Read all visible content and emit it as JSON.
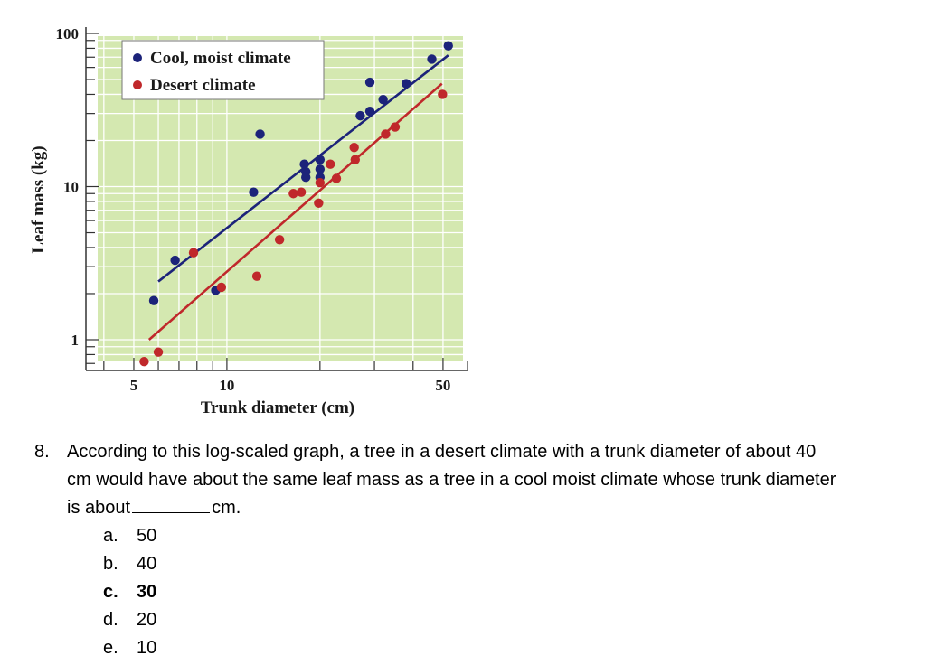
{
  "chart_data": {
    "type": "scatter",
    "xlabel": "Trunk diameter (cm)",
    "ylabel": "Leaf mass (kg)",
    "x_scale": "log",
    "y_scale": "log",
    "xlim": [
      3.5,
      60
    ],
    "ylim": [
      0.63,
      110
    ],
    "x_ticks": [
      5,
      10,
      50
    ],
    "y_ticks": [
      1,
      10,
      100
    ],
    "x_tick_labels": [
      "5",
      "10",
      "50"
    ],
    "y_tick_labels": [
      "1",
      "10",
      "100"
    ],
    "grid": true,
    "background": "#d4e8b0",
    "legend_position": "top-left",
    "series": [
      {
        "name": "Cool, moist climate",
        "color": "#1c237a",
        "points": [
          [
            5.8,
            1.8
          ],
          [
            6.8,
            3.3
          ],
          [
            9.2,
            2.1
          ],
          [
            12.2,
            9.2
          ],
          [
            12.8,
            22
          ],
          [
            17.8,
            14
          ],
          [
            18,
            12.5
          ],
          [
            18,
            11.5
          ],
          [
            20,
            15
          ],
          [
            20,
            13
          ],
          [
            20,
            11.5
          ],
          [
            27,
            29
          ],
          [
            29,
            31
          ],
          [
            29,
            48
          ],
          [
            32,
            37
          ],
          [
            38,
            47
          ],
          [
            46,
            68
          ],
          [
            52,
            83
          ]
        ],
        "fit": [
          [
            6.0,
            2.4
          ],
          [
            52,
            72
          ]
        ]
      },
      {
        "name": "Desert climate",
        "color": "#c0282b",
        "points": [
          [
            5.4,
            0.72
          ],
          [
            6.0,
            0.83
          ],
          [
            7.8,
            3.7
          ],
          [
            9.6,
            2.2
          ],
          [
            12.5,
            2.6
          ],
          [
            14.8,
            4.5
          ],
          [
            16.4,
            9
          ],
          [
            17.4,
            9.2
          ],
          [
            19.8,
            7.8
          ],
          [
            20,
            10.6
          ],
          [
            21.6,
            14
          ],
          [
            22.6,
            11.3
          ],
          [
            25.8,
            18
          ],
          [
            26,
            15
          ],
          [
            32.6,
            22
          ],
          [
            35,
            24.5
          ],
          [
            49.8,
            40
          ]
        ],
        "fit": [
          [
            5.6,
            1.0
          ],
          [
            49.6,
            47
          ]
        ]
      }
    ]
  },
  "question": {
    "number": "8.",
    "line1": "According to this log-scaled graph, a tree in a desert climate with a trunk diameter of about 40",
    "line2": "cm would have about the same leaf mass as a tree in a cool moist climate whose trunk diameter",
    "line3_start": "is about",
    "line3_end": "cm.",
    "choices": [
      {
        "label": "a.",
        "value": "50",
        "bold": false
      },
      {
        "label": "b.",
        "value": "40",
        "bold": false
      },
      {
        "label": "c.",
        "value": "30",
        "bold": true
      },
      {
        "label": "d.",
        "value": "20",
        "bold": false
      },
      {
        "label": "e.",
        "value": "10",
        "bold": false
      }
    ]
  }
}
